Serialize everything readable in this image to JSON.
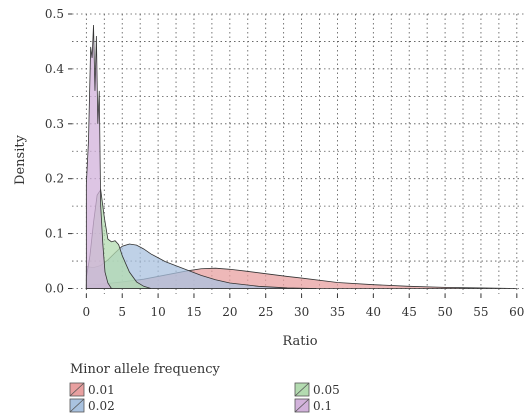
{
  "chart_data": {
    "type": "area",
    "xlabel": "Ratio",
    "ylabel": "Density",
    "xlim": [
      -2,
      61
    ],
    "ylim": [
      -0.01,
      0.5
    ],
    "x_ticks": [
      0,
      5,
      10,
      15,
      20,
      25,
      30,
      35,
      40,
      45,
      50,
      55,
      60
    ],
    "y_ticks": [
      0.0,
      0.1,
      0.2,
      0.3,
      0.4,
      0.5
    ],
    "y_tick_labels": [
      "0.0",
      "0.1",
      "0.2",
      "0.3",
      "0.4",
      "0.5"
    ],
    "grid": true,
    "grid_style": "dotted",
    "legend": {
      "title": "Minor allele frequency",
      "placement": "bottom"
    },
    "series": [
      {
        "name": "0.01",
        "color": "#e8a0a0",
        "stroke": "#333333",
        "x": [
          0,
          2,
          5,
          8,
          10,
          12,
          14,
          16,
          18,
          20,
          22,
          25,
          28,
          30,
          35,
          40,
          45,
          50,
          55,
          60
        ],
        "y": [
          0.006,
          0.008,
          0.012,
          0.017,
          0.022,
          0.027,
          0.032,
          0.036,
          0.037,
          0.035,
          0.032,
          0.027,
          0.022,
          0.019,
          0.011,
          0.007,
          0.004,
          0.002,
          0.001,
          0.0
        ]
      },
      {
        "name": "0.02",
        "color": "#a9c2df",
        "stroke": "#333333",
        "x": [
          0,
          1,
          2,
          3,
          4,
          5,
          6,
          7,
          8,
          9,
          10,
          11,
          12,
          13,
          14,
          16,
          18,
          20,
          24,
          28,
          32
        ],
        "y": [
          0.04,
          0.038,
          0.042,
          0.052,
          0.065,
          0.077,
          0.081,
          0.079,
          0.072,
          0.063,
          0.056,
          0.049,
          0.044,
          0.039,
          0.034,
          0.024,
          0.016,
          0.01,
          0.004,
          0.001,
          0.0
        ]
      },
      {
        "name": "0.05",
        "color": "#b3dbb0",
        "stroke": "#333333",
        "x": [
          0,
          0.5,
          1,
          1.5,
          2,
          2.5,
          3,
          3.5,
          4,
          4.5,
          5,
          6,
          7,
          8,
          9
        ],
        "y": [
          0.02,
          0.06,
          0.12,
          0.17,
          0.18,
          0.13,
          0.09,
          0.085,
          0.087,
          0.08,
          0.06,
          0.03,
          0.012,
          0.004,
          0.0
        ]
      },
      {
        "name": "0.1",
        "color": "#d2b2db",
        "stroke": "#333333",
        "x": [
          0,
          0.3,
          0.6,
          0.8,
          1.0,
          1.2,
          1.4,
          1.6,
          1.8,
          2.0,
          2.3,
          2.6,
          3.0,
          3.5
        ],
        "y": [
          0.19,
          0.27,
          0.44,
          0.42,
          0.48,
          0.36,
          0.46,
          0.3,
          0.36,
          0.15,
          0.08,
          0.03,
          0.01,
          0.0
        ]
      }
    ]
  }
}
